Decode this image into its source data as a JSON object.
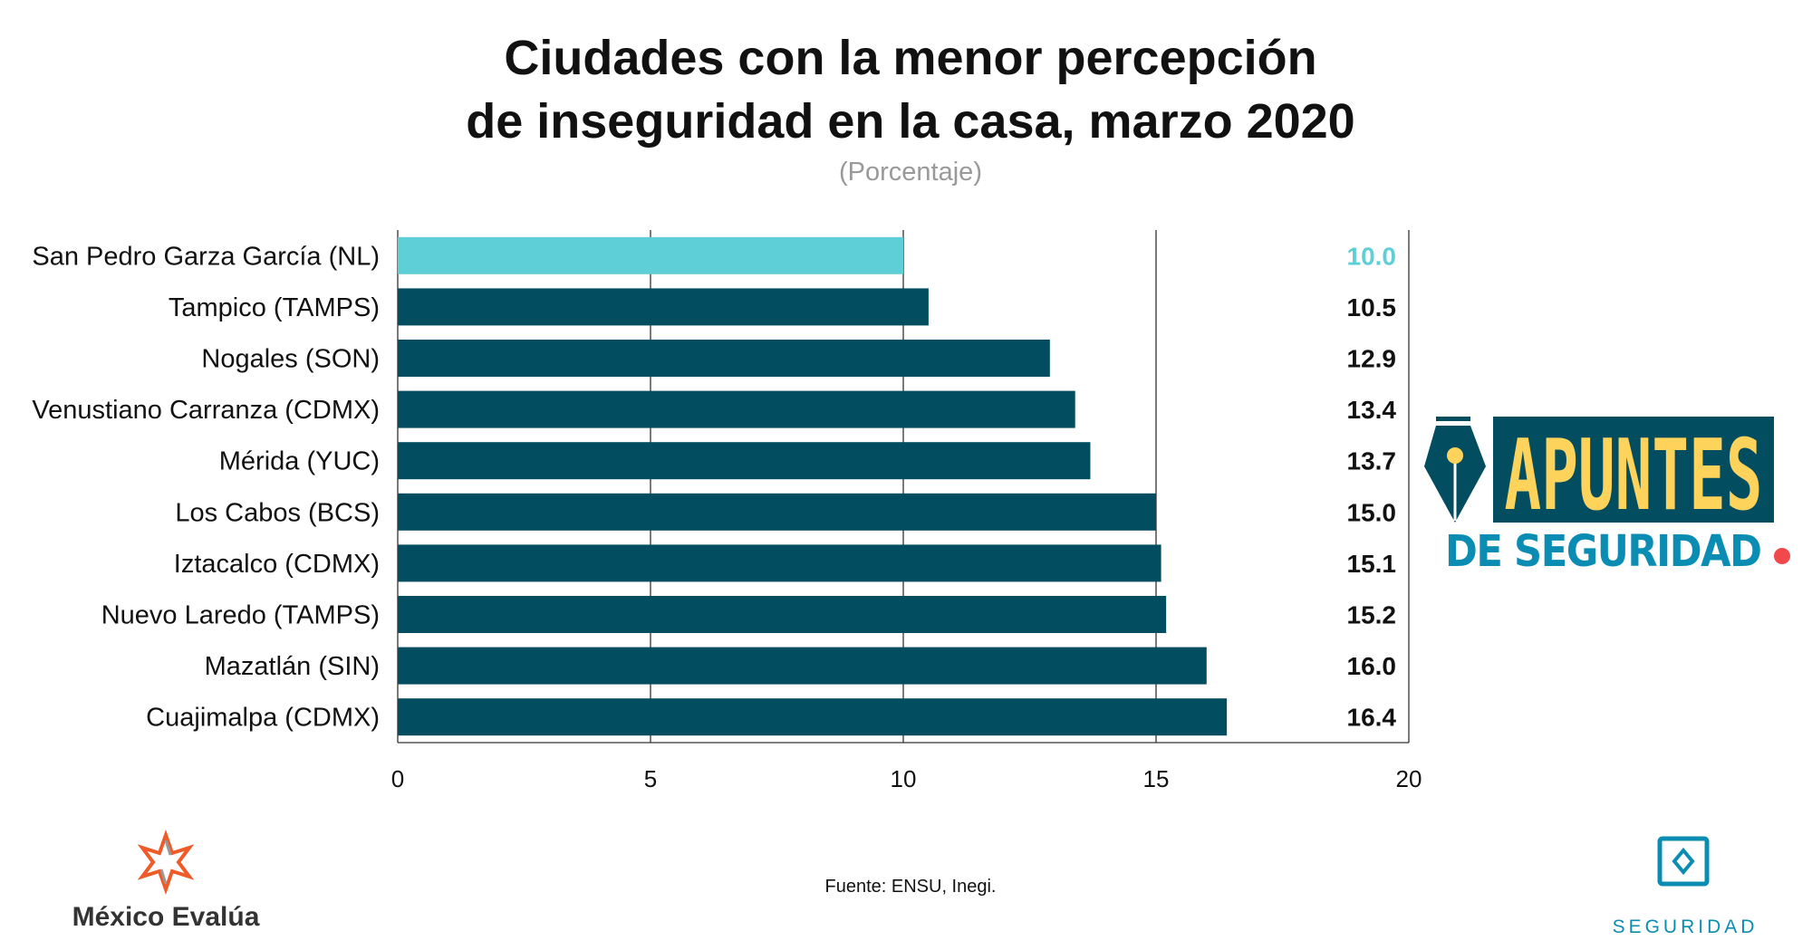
{
  "chart_data": {
    "type": "bar",
    "orientation": "horizontal",
    "title": "Ciudades con la menor percepción de inseguridad en la casa, marzo 2020",
    "title_lines": [
      "Ciudades con la menor percepción",
      "de inseguridad en la casa, marzo 2020"
    ],
    "subtitle": "(Porcentaje)",
    "categories": [
      "San Pedro Garza García (NL)",
      "Tampico (TAMPS)",
      "Nogales (SON)",
      "Venustiano Carranza (CDMX)",
      "Mérida (YUC)",
      "Los Cabos (BCS)",
      "Iztacalco (CDMX)",
      "Nuevo Laredo (TAMPS)",
      "Mazatlán (SIN)",
      "Cuajimalpa (CDMX)"
    ],
    "values": [
      10.0,
      10.5,
      12.9,
      13.4,
      13.7,
      15.0,
      15.1,
      15.2,
      16.0,
      16.4
    ],
    "value_labels": [
      "10.0",
      "10.5",
      "12.9",
      "13.4",
      "13.7",
      "15.0",
      "15.1",
      "15.2",
      "16.0",
      "16.4"
    ],
    "xlim": [
      0,
      20
    ],
    "xticks": [
      "0",
      "5",
      "10",
      "15",
      "20"
    ],
    "grid": true,
    "colors": {
      "highlight": "#5ecfd6",
      "bar": "#024d60"
    },
    "highlight_index": 0
  },
  "source": "Fuente: ENSU, Inegi.",
  "logos": {
    "apuntes": {
      "line1": "APUNTES",
      "line2": "DE SEGURIDAD"
    },
    "mexico_evalua": "México Evalúa",
    "seguridad": "SEGURIDAD"
  }
}
